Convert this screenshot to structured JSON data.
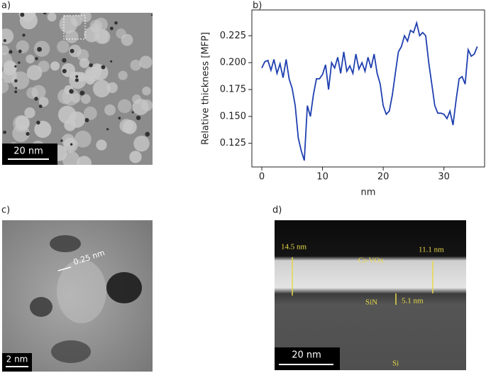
{
  "panels": {
    "a": {
      "label": "a)",
      "scale_bar": "20 nm"
    },
    "b": {
      "label": "b)"
    },
    "c": {
      "label": "c)",
      "lattice": "0.25 nm",
      "scale_bar": "2 nm"
    },
    "d": {
      "label": "d)",
      "left_thickness": "14.5 nm",
      "right_thickness": "11.1 nm",
      "layer_top": "Cr-VOx",
      "layer_mid": "SiN",
      "sin_thickness": "5.1 nm",
      "substrate": "Si",
      "scale_bar": "20 nm"
    }
  },
  "chart_data": {
    "type": "line",
    "xlabel": "nm",
    "ylabel": "Relative thickness [MFP]",
    "color": "#1f3fb0",
    "x": [
      0,
      0.5,
      1,
      1.5,
      2,
      2.5,
      3,
      3.5,
      4,
      4.5,
      5,
      5.5,
      6,
      6.5,
      7,
      7.5,
      8,
      8.5,
      9,
      9.5,
      10,
      10.5,
      11,
      11.5,
      12,
      12.5,
      13,
      13.5,
      14,
      14.5,
      15,
      15.5,
      16,
      16.5,
      17,
      17.5,
      18,
      18.5,
      19,
      19.5,
      20,
      20.5,
      21,
      21.5,
      22,
      22.5,
      23,
      23.5,
      24,
      24.5,
      25,
      25.5,
      26,
      26.5,
      27,
      27.5,
      28,
      28.5,
      29,
      29.5,
      30,
      30.5,
      31,
      31.5,
      32,
      32.5,
      33,
      33.5,
      34,
      34.5,
      35,
      35.5
    ],
    "values": [
      0.195,
      0.201,
      0.202,
      0.193,
      0.203,
      0.19,
      0.199,
      0.186,
      0.203,
      0.185,
      0.176,
      0.16,
      0.13,
      0.118,
      0.109,
      0.16,
      0.15,
      0.17,
      0.185,
      0.185,
      0.189,
      0.198,
      0.175,
      0.2,
      0.195,
      0.205,
      0.19,
      0.21,
      0.192,
      0.197,
      0.19,
      0.208,
      0.194,
      0.2,
      0.192,
      0.205,
      0.195,
      0.208,
      0.19,
      0.18,
      0.16,
      0.152,
      0.155,
      0.17,
      0.19,
      0.21,
      0.215,
      0.225,
      0.22,
      0.23,
      0.228,
      0.237,
      0.225,
      0.228,
      0.225,
      0.2,
      0.18,
      0.16,
      0.153,
      0.153,
      0.152,
      0.148,
      0.155,
      0.142,
      0.165,
      0.185,
      0.187,
      0.18,
      0.212,
      0.206,
      0.208,
      0.215
    ],
    "xlim": [
      -1.64,
      36.7
    ],
    "ylim": [
      0.103,
      0.249
    ],
    "xticks": [
      0,
      10,
      20,
      30
    ],
    "yticks": [
      0.125,
      {
        "value": 0.15,
        "label": "0.150"
      },
      0.175,
      {
        "value": 0.2,
        "label": "0.200"
      },
      0.225
    ]
  }
}
